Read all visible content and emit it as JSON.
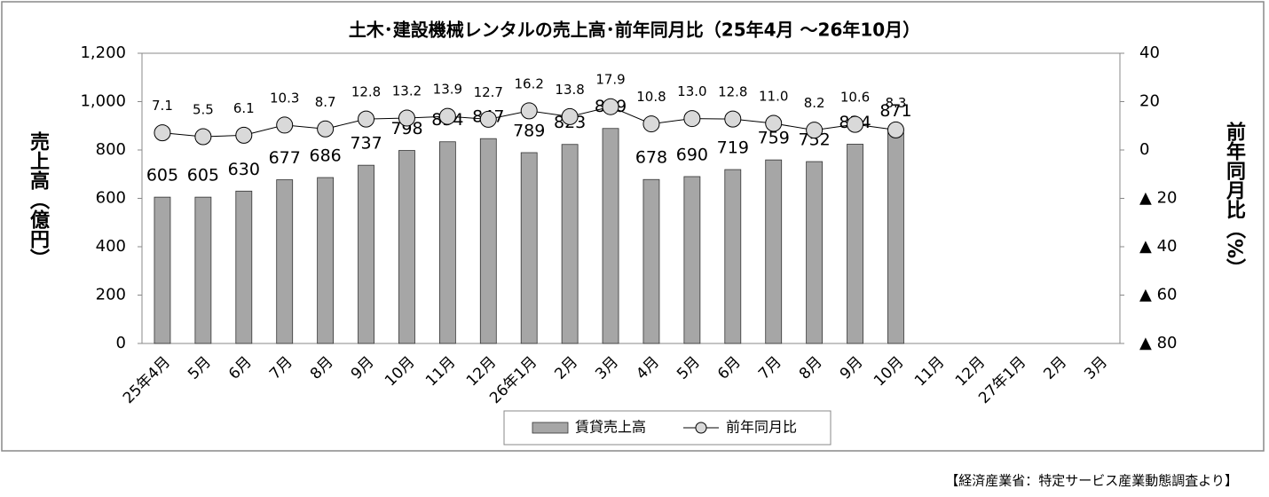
{
  "chart_data": {
    "type": "bar-line",
    "title": "土木･建設機械レンタルの売上高･前年同月比（25年4月 ～26年10月）",
    "y_label": "売上高（億円）",
    "y2_label": "前年同月比（%）",
    "source": "【経済産業省：特定サービス産業動態調査より】",
    "categories": [
      "25年4月",
      "5月",
      "6月",
      "7月",
      "8月",
      "9月",
      "10月",
      "11月",
      "12月",
      "26年1月",
      "2月",
      "3月",
      "4月",
      "5月",
      "6月",
      "7月",
      "8月",
      "9月",
      "10月",
      "11月",
      "12月",
      "27年1月",
      "2月",
      "3月"
    ],
    "series": [
      {
        "name": "賃貸売上高",
        "type": "bar",
        "color": "#a6a6a6",
        "values": [
          605,
          605,
          630,
          677,
          686,
          737,
          798,
          834,
          847,
          789,
          823,
          889,
          678,
          690,
          719,
          759,
          752,
          824,
          871,
          null,
          null,
          null,
          null,
          null
        ]
      },
      {
        "name": "前年同月比",
        "type": "line",
        "axis": "y2",
        "color": "#d9d9d9",
        "values": [
          7.1,
          5.5,
          6.1,
          10.3,
          8.7,
          12.8,
          13.2,
          13.9,
          12.7,
          16.2,
          13.8,
          17.9,
          10.8,
          13.0,
          12.8,
          11.0,
          8.2,
          10.6,
          8.3,
          null,
          null,
          null,
          null,
          null
        ],
        "value_labels": [
          "7.1",
          "5.5",
          "6.1",
          "10.3",
          "8.7",
          "12.8",
          "13.2",
          "13.9",
          "12.7",
          "16.2",
          "13.8",
          "17.9",
          "10.8",
          "13.0",
          "12.8",
          "11.0",
          "8.2",
          "10.6",
          "8.3",
          null,
          null,
          null,
          null,
          null
        ]
      }
    ],
    "ylim": [
      0,
      1200
    ],
    "yticks": [
      0,
      200,
      400,
      600,
      800,
      {
        "value": 1000,
        "label": "1,000"
      },
      {
        "value": 1200,
        "label": "1,200"
      }
    ],
    "y2lim": [
      -80,
      40
    ],
    "y2ticks": [
      {
        "value": -80,
        "label": "▲ 80"
      },
      {
        "value": -60,
        "label": "▲ 60"
      },
      {
        "value": -40,
        "label": "▲ 40"
      },
      {
        "value": -20,
        "label": "▲ 20"
      },
      0,
      20,
      40
    ],
    "legend": "bottom"
  }
}
